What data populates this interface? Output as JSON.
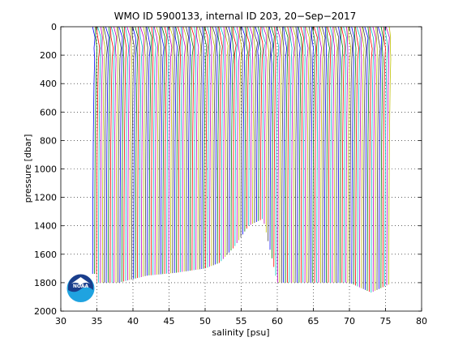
{
  "chart_data": {
    "type": "line",
    "title": "WMO ID 5900133, internal ID 203, 20−Sep−2017",
    "xlabel": "salinity [psu]",
    "ylabel": "pressure [dbar]",
    "xlim": [
      30,
      80
    ],
    "ylim": [
      2000,
      0
    ],
    "y_reversed": true,
    "grid": true,
    "x_ticks": [
      "30",
      "35",
      "40",
      "45",
      "50",
      "55",
      "60",
      "65",
      "70",
      "75",
      "80"
    ],
    "y_ticks": [
      "0",
      "200",
      "400",
      "600",
      "800",
      "1000",
      "1200",
      "1400",
      "1600",
      "1800",
      "2000"
    ],
    "series_description": "waterfall of salinity profiles, each offset along the salinity axis",
    "offset_start": 34.4,
    "offset_step": 0.27,
    "series_count": 153,
    "surface_pressure": 0,
    "base_salinity_shape": {
      "pressure": [
        0,
        50,
        100,
        200,
        400,
        800,
        1200,
        1600,
        1800
      ],
      "delta": [
        0.0,
        0.15,
        0.35,
        0.3,
        0.2,
        0.1,
        0.05,
        0.02,
        0.0
      ]
    },
    "max_depth_by_offset": {
      "offset": [
        34.4,
        38,
        42,
        46,
        50,
        52,
        54,
        56,
        58,
        60,
        65,
        70,
        73,
        76
      ],
      "max_pressure": [
        1800,
        1800,
        1750,
        1730,
        1700,
        1660,
        1550,
        1400,
        1350,
        1800,
        1800,
        1800,
        1870,
        1800
      ]
    },
    "colors": [
      "#0000ff",
      "#008000",
      "#ff0000",
      "#00bfbf",
      "#bf00bf",
      "#bfbf00",
      "#404040"
    ]
  },
  "logo": {
    "text": "NOAA",
    "circle_color": "#1a3e8c",
    "wave_color": "#1fa3e0"
  }
}
